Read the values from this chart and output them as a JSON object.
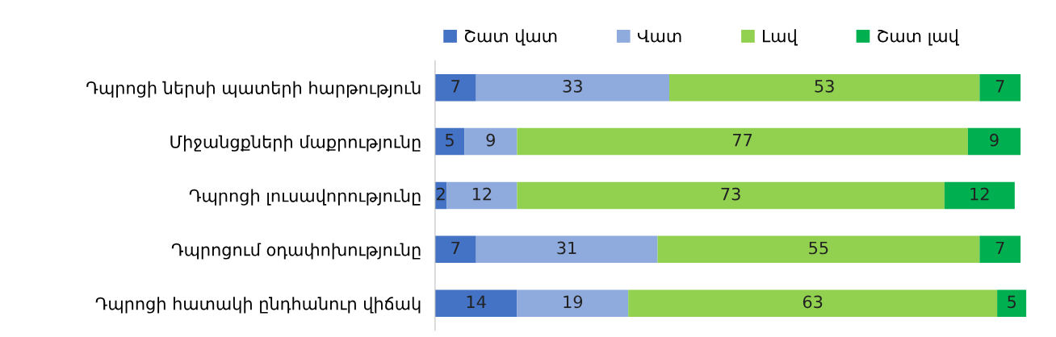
{
  "chart_data": {
    "type": "bar",
    "orientation": "horizontal",
    "stacked": true,
    "data_labels": true,
    "legend": "top",
    "grid": false,
    "tick_labels": "y",
    "categories": [
      "Դպրոցի ներսի պատերի հարթություն",
      "Միջանցքների մաքրությունը",
      "Դպրոցի լուսավորությունը",
      "Դպրոցում օդափոխությունը",
      "Դպրոցի հատակի ընդհանուր վիճակ"
    ],
    "series": [
      {
        "name": "Շատ վատ",
        "color": "#4472c4",
        "values": [
          7,
          5,
          2,
          7,
          14
        ]
      },
      {
        "name": "Վատ",
        "color": "#8faadc",
        "values": [
          33,
          9,
          12,
          31,
          19
        ]
      },
      {
        "name": "Լավ",
        "color": "#92d050",
        "values": [
          53,
          77,
          73,
          55,
          63
        ]
      },
      {
        "name": "Շատ լավ",
        "color": "#00b050",
        "values": [
          7,
          9,
          12,
          7,
          5
        ]
      }
    ]
  }
}
